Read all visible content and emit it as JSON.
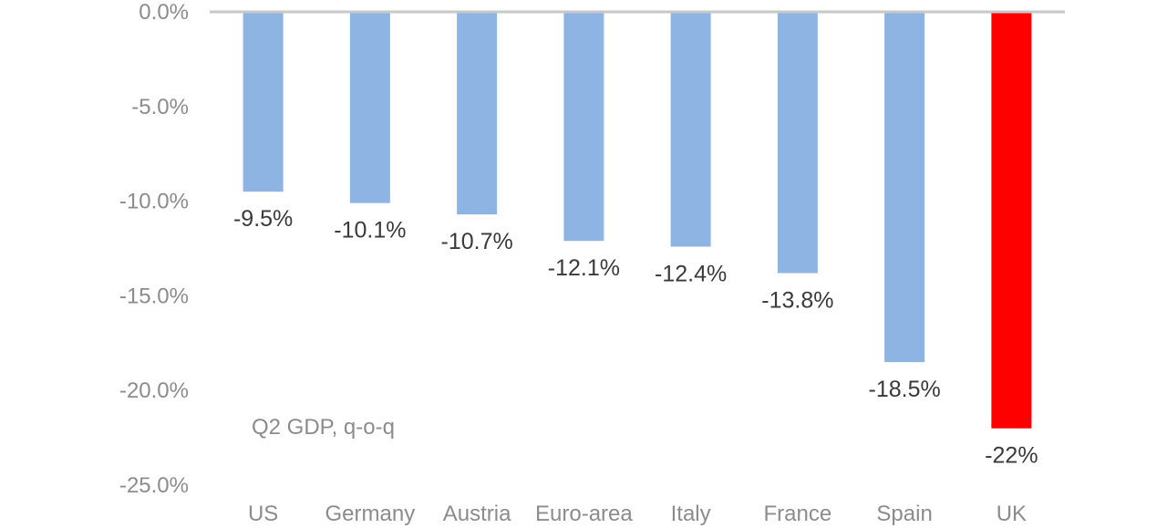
{
  "chart_data": {
    "type": "bar",
    "title": "",
    "annotation": "Q2 GDP, q-o-q",
    "xlabel": "",
    "ylabel": "",
    "ylim": [
      -25,
      0
    ],
    "yticks": [
      0,
      -5,
      -10,
      -15,
      -20,
      -25
    ],
    "ytick_labels": [
      "0.0%",
      "-5.0%",
      "-10.0%",
      "-15.0%",
      "-20.0%",
      "-25.0%"
    ],
    "categories": [
      "US",
      "Germany",
      "Austria",
      "Euro-area",
      "Italy",
      "France",
      "Spain",
      "UK"
    ],
    "values": [
      -9.5,
      -10.1,
      -10.7,
      -12.1,
      -12.4,
      -13.8,
      -18.5,
      -22
    ],
    "value_labels": [
      "-9.5%",
      "-10.1%",
      "-10.7%",
      "-12.1%",
      "-12.4%",
      "-13.8%",
      "-18.5%",
      "-22%"
    ],
    "colors": [
      "#8eb4e3",
      "#8eb4e3",
      "#8eb4e3",
      "#8eb4e3",
      "#8eb4e3",
      "#8eb4e3",
      "#8eb4e3",
      "#ff0000"
    ],
    "axis_color": "#c8c8c8",
    "grid": false
  }
}
